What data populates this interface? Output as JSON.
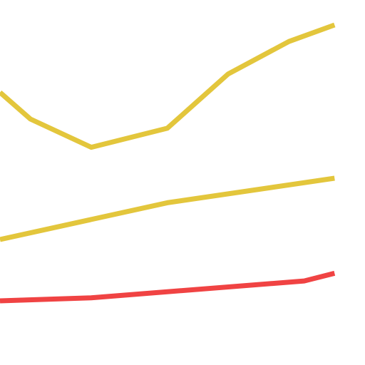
{
  "chart_data": {
    "type": "line",
    "title": "",
    "xlabel": "",
    "ylabel": "",
    "x": [
      0,
      1,
      2,
      3,
      4,
      5,
      6
    ],
    "xlim": [
      0,
      6
    ],
    "ylim": [
      0,
      100
    ],
    "grid": false,
    "series": [
      {
        "color": "#E3C63C",
        "values": [
          null,
          69.3,
          60.1,
          66.3,
          84.0,
          94.6,
          100.0
        ],
        "x_values": [
          0,
          0.5,
          1.5,
          2.75,
          3.75,
          4.75,
          5.5
        ],
        "y_values": [
          78.0,
          69.3,
          60.1,
          66.3,
          84.0,
          94.6,
          100.0
        ]
      },
      {
        "color": "#E3C63C",
        "x_values": [
          0,
          2.75,
          5.5
        ],
        "y_values": [
          30.0,
          42.0,
          50.0
        ]
      },
      {
        "color": "#F04343",
        "x_values": [
          0,
          1.5,
          5.0,
          5.5
        ],
        "y_values": [
          10.0,
          11.0,
          16.5,
          19.0
        ]
      }
    ]
  }
}
